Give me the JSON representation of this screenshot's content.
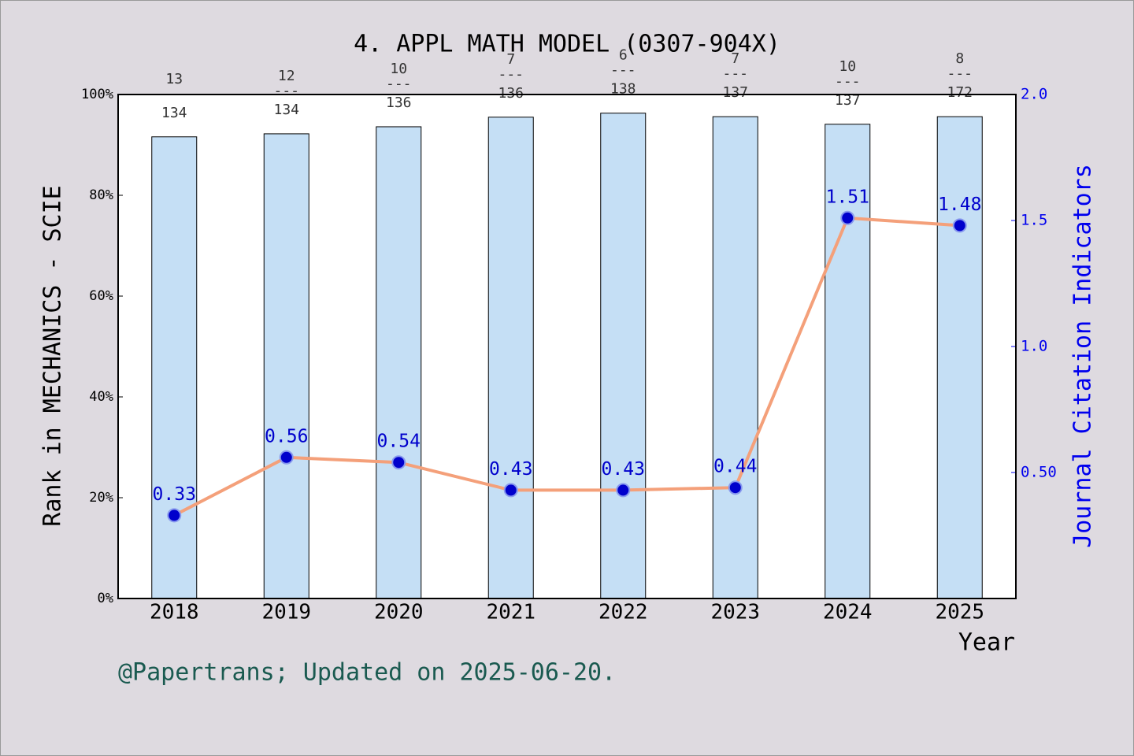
{
  "chart_data": {
    "type": "bar-line",
    "title": "4. APPL MATH MODEL (0307-904X)",
    "x_label": "Year",
    "y_label": "Rank in MECHANICS - SCIE",
    "y2_label": "Journal Citation Indicators",
    "note": "@Papertrans; Updated on 2025-06-20.",
    "categories": [
      "2018",
      "2019",
      "2020",
      "2021",
      "2022",
      "2023",
      "2024",
      "2025"
    ],
    "series": [
      {
        "type": "bar",
        "color": "#c5dff5",
        "values": [
          91.6,
          92.2,
          93.6,
          95.5,
          96.3,
          95.6,
          94.1,
          95.6
        ],
        "ranks": [
          "13",
          "12",
          "10",
          "7",
          "6",
          "7",
          "10",
          "8"
        ],
        "totals": [
          "134",
          "134",
          "136",
          "136",
          "138",
          "137",
          "137",
          "172"
        ],
        "rank_separator": "---"
      },
      {
        "type": "line",
        "axis": "y2",
        "color": "#f4a07a",
        "marker_color": "#0000cc",
        "values": [
          0.33,
          0.56,
          0.54,
          0.43,
          0.43,
          0.44,
          1.51,
          1.48
        ]
      }
    ],
    "ylim": [
      0,
      100
    ],
    "yticks": [
      {
        "value": 0,
        "label": "0%"
      },
      {
        "value": 20,
        "label": "20%"
      },
      {
        "value": 40,
        "label": "40%"
      },
      {
        "value": 60,
        "label": "60%"
      },
      {
        "value": 80,
        "label": "80%"
      },
      {
        "value": 100,
        "label": "100%"
      }
    ],
    "y2lim": [
      0,
      2
    ],
    "y2ticks": [
      {
        "value": 0.5,
        "label": "0.50"
      },
      {
        "value": 1,
        "label": "1.0"
      },
      1.5,
      {
        "value": 2,
        "label": "2.0"
      }
    ],
    "y2_color": "#0000ee"
  }
}
